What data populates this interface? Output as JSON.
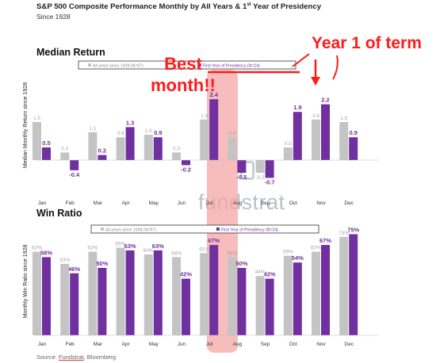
{
  "title_main": "S&P 500 Composite Performance Monthly by All Years & 1",
  "title_sup": "st",
  "title_tail": " Year of Presidency",
  "subtitle": "Since 1928",
  "source": {
    "prefix": "Source: ",
    "link": "Fundstrat",
    "suffix": ", Bloomberg"
  },
  "logo_text": "fundstrat",
  "annotations": {
    "year1": "Year 1 of term",
    "best_line1": "Best",
    "best_line2": "month!!"
  },
  "colors": {
    "all_years": "#c4c4c4",
    "first_year": "#7030a0",
    "highlight": "#f4a6a6",
    "annotation": "#ff1a1a",
    "label_gray": "#a6a6a6"
  },
  "chart_data": [
    {
      "type": "bar",
      "title": "Median Return",
      "ylabel": "Median Monthly Return since 1928",
      "categories": [
        "Jan",
        "Feb",
        "Mar",
        "Apr",
        "May",
        "Jun",
        "Jul",
        "Aug",
        "Sep",
        "Oct",
        "Nov",
        "Dec"
      ],
      "series": [
        {
          "name": "All years since 1928",
          "values": [
            1.5,
            0.3,
            1.1,
            0.9,
            1.0,
            0.3,
            1.6,
            0.9,
            -0.5,
            0.5,
            1.6,
            1.5
          ]
        },
        {
          "name": "First Year of Presidency (N=24)",
          "values": [
            0.5,
            -0.4,
            0.2,
            1.3,
            0.9,
            -0.2,
            2.4,
            -0.5,
            -0.7,
            1.9,
            2.2,
            0.9
          ]
        }
      ],
      "legend": {
        "all": "All years since 1928 (N=97)",
        "first": "First Year of Presidency (N=24)",
        "placement": "top"
      },
      "highlight": "Jul"
    },
    {
      "type": "bar",
      "title": "Win Ratio",
      "ylabel": "Monthly Win Ratio since 1928",
      "categories": [
        "Jan",
        "Feb",
        "Mar",
        "Apr",
        "May",
        "Jun",
        "Jul",
        "Aug",
        "Sep",
        "Oct",
        "Nov",
        "Dec"
      ],
      "series": [
        {
          "name": "All years since 1928",
          "values": [
            62,
            53,
            62,
            65,
            60,
            58,
            61,
            58,
            44,
            59,
            62,
            73
          ],
          "unit": "%"
        },
        {
          "name": "First Year of Presidency (N=24)",
          "values": [
            58,
            46,
            50,
            63,
            63,
            42,
            67,
            50,
            42,
            54,
            67,
            75
          ],
          "unit": "%"
        }
      ],
      "legend": {
        "all": "All years since 1928 (N=97)",
        "first": "First Year of Presidency (N=24)",
        "placement": "top"
      },
      "highlight": "Jul"
    }
  ]
}
